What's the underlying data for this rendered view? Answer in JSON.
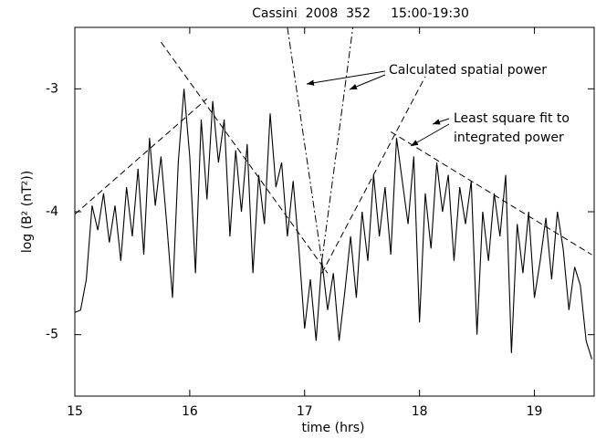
{
  "chart_data": {
    "type": "line",
    "title": "Cassini  2008  352     15:00-19:30",
    "x_label": "time (hrs)",
    "y_label": "log (B² (nT²))",
    "xlim": [
      15,
      19.52
    ],
    "ylim": [
      -5.5,
      -2.5
    ],
    "xticks": [
      15,
      16,
      17,
      18,
      19
    ],
    "yticks": [
      -3,
      -4,
      -5
    ],
    "series": [
      {
        "color": "#000000",
        "line_style": "solid",
        "x": [
          15.0,
          15.05,
          15.1,
          15.15,
          15.2,
          15.25,
          15.3,
          15.35,
          15.4,
          15.45,
          15.5,
          15.55,
          15.6,
          15.65,
          15.7,
          15.75,
          15.8,
          15.85,
          15.9,
          15.95,
          16.0,
          16.05,
          16.1,
          16.15,
          16.2,
          16.25,
          16.3,
          16.35,
          16.4,
          16.45,
          16.5,
          16.55,
          16.6,
          16.65,
          16.7,
          16.75,
          16.8,
          16.85,
          16.9,
          16.95,
          17.0,
          17.05,
          17.1,
          17.15,
          17.2,
          17.25,
          17.3,
          17.35,
          17.4,
          17.45,
          17.5,
          17.55,
          17.6,
          17.65,
          17.7,
          17.75,
          17.8,
          17.85,
          17.9,
          17.95,
          18.0,
          18.05,
          18.1,
          18.15,
          18.2,
          18.25,
          18.3,
          18.35,
          18.4,
          18.45,
          18.5,
          18.55,
          18.6,
          18.65,
          18.7,
          18.75,
          18.8,
          18.85,
          18.9,
          18.95,
          19.0,
          19.05,
          19.1,
          19.15,
          19.2,
          19.25,
          19.3,
          19.35,
          19.4,
          19.45,
          19.5
        ],
        "values": [
          -4.82,
          -4.8,
          -4.55,
          -3.95,
          -4.15,
          -3.85,
          -4.25,
          -3.95,
          -4.4,
          -3.8,
          -4.2,
          -3.65,
          -4.35,
          -3.4,
          -3.95,
          -3.55,
          -4.1,
          -4.7,
          -3.6,
          -3.0,
          -3.55,
          -4.5,
          -3.25,
          -3.9,
          -3.1,
          -3.6,
          -3.25,
          -4.2,
          -3.5,
          -4.0,
          -3.45,
          -4.5,
          -3.7,
          -4.1,
          -3.2,
          -3.8,
          -3.6,
          -4.2,
          -3.75,
          -4.3,
          -4.95,
          -4.55,
          -5.05,
          -4.4,
          -4.8,
          -4.5,
          -5.05,
          -4.65,
          -4.2,
          -4.7,
          -4.0,
          -4.4,
          -3.7,
          -4.2,
          -3.8,
          -4.35,
          -3.4,
          -3.75,
          -4.1,
          -3.55,
          -4.9,
          -3.85,
          -4.3,
          -3.6,
          -4.0,
          -3.7,
          -4.4,
          -3.8,
          -4.1,
          -3.75,
          -5.0,
          -4.0,
          -4.4,
          -3.85,
          -4.2,
          -3.7,
          -5.15,
          -4.1,
          -4.5,
          -4.0,
          -4.7,
          -4.4,
          -4.05,
          -4.55,
          -4.0,
          -4.3,
          -4.8,
          -4.45,
          -4.6,
          -5.05,
          -5.2
        ]
      },
      {
        "color": "#000000",
        "line_style": "dashed",
        "x": [
          15.0,
          16.15
        ],
        "values": [
          -4.02,
          -3.08
        ]
      },
      {
        "color": "#000000",
        "line_style": "dashed",
        "x": [
          15.75,
          17.2
        ],
        "values": [
          -2.62,
          -4.5
        ]
      },
      {
        "color": "#000000",
        "line_style": "dashed",
        "x": [
          17.15,
          18.05
        ],
        "values": [
          -4.5,
          -2.9
        ]
      },
      {
        "color": "#000000",
        "line_style": "dashed",
        "x": [
          17.75,
          19.5
        ],
        "values": [
          -3.35,
          -4.35
        ]
      },
      {
        "color": "#000000",
        "line_style": "dashdot",
        "x": [
          16.85,
          17.15
        ],
        "values": [
          -2.5,
          -4.4
        ]
      },
      {
        "color": "#000000",
        "line_style": "dashdot",
        "x": [
          17.15,
          17.42
        ],
        "values": [
          -4.4,
          -2.5
        ]
      }
    ],
    "annotations": [
      "Calculated spatial power",
      "Least square fit to",
      "integrated power"
    ]
  }
}
